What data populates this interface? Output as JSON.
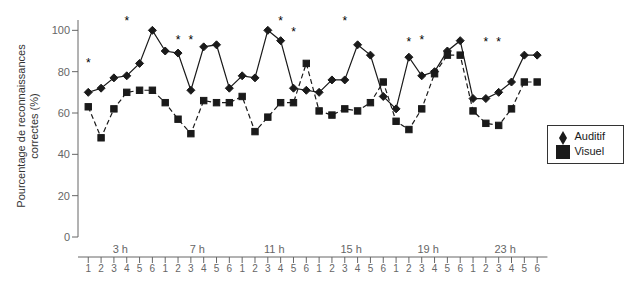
{
  "chart_data": {
    "type": "line",
    "title": "",
    "ylabel": "Pourcentage de reconnaissances\ncorrectes (%)",
    "groups": [
      "3 h",
      "7 h",
      "11 h",
      "15 h",
      "19 h",
      "23 h"
    ],
    "categories": [
      "1",
      "2",
      "3",
      "4",
      "5",
      "6",
      "1",
      "2",
      "3",
      "4",
      "5",
      "6",
      "1",
      "2",
      "3",
      "4",
      "5",
      "6",
      "1",
      "2",
      "3",
      "4",
      "5",
      "6",
      "1",
      "2",
      "3",
      "4",
      "5",
      "6",
      "1",
      "2",
      "3",
      "4",
      "5",
      "6"
    ],
    "series": [
      {
        "name": "Auditif",
        "color": "#1a1a1a",
        "marker": "diamond",
        "line_style": "solid",
        "values": [
          70,
          72,
          77,
          78,
          84,
          100,
          90,
          89,
          71,
          92,
          93,
          72,
          78,
          77,
          100,
          95,
          72,
          71,
          70,
          76,
          76,
          93,
          88,
          68,
          62,
          87,
          78,
          80,
          90,
          95,
          67,
          67,
          70,
          75,
          88,
          88
        ]
      },
      {
        "name": "Visuel",
        "color": "#1a1a1a",
        "marker": "square",
        "line_style": "dashed",
        "values": [
          63,
          48,
          62,
          70,
          71,
          71,
          65,
          57,
          50,
          66,
          65,
          65,
          68,
          51,
          58,
          65,
          65,
          84,
          61,
          59,
          62,
          61,
          65,
          75,
          56,
          52,
          62,
          79,
          88,
          88,
          61,
          55,
          54,
          62,
          75,
          75
        ]
      }
    ],
    "annotations": [
      {
        "text": "*",
        "group": "3 h",
        "category": "1",
        "y": 82
      },
      {
        "text": "*",
        "group": "3 h",
        "category": "4",
        "y": 102
      },
      {
        "text": "*",
        "group": "7 h",
        "category": "2",
        "y": 93
      },
      {
        "text": "*",
        "group": "7 h",
        "category": "3",
        "y": 93
      },
      {
        "text": "*",
        "group": "11 h",
        "category": "4",
        "y": 102
      },
      {
        "text": "*",
        "group": "11 h",
        "category": "5",
        "y": 97
      },
      {
        "text": "*",
        "group": "15 h",
        "category": "3",
        "y": 102
      },
      {
        "text": "*",
        "group": "19 h",
        "category": "2",
        "y": 92
      },
      {
        "text": "*",
        "group": "19 h",
        "category": "3",
        "y": 93
      },
      {
        "text": "*",
        "group": "23 h",
        "category": "2",
        "y": 92
      },
      {
        "text": "*",
        "group": "23 h",
        "category": "3",
        "y": 92
      }
    ],
    "ylim": [
      0,
      105
    ],
    "yticks": [
      0,
      20,
      40,
      60,
      80,
      100
    ],
    "grid": false,
    "legend": "right"
  }
}
